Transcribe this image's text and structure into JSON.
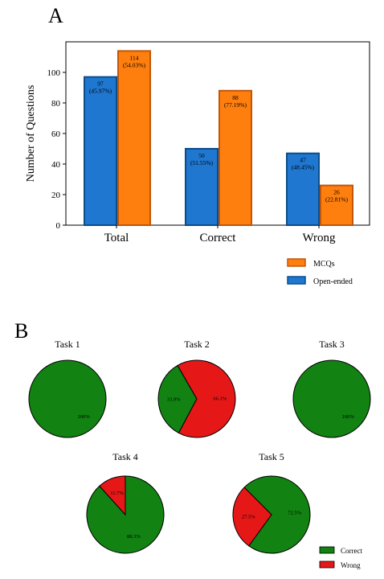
{
  "panel_a_label": "A",
  "panel_b_label": "B",
  "colors": {
    "mcq": "#FF7F0E",
    "mcq_edge": "#c0560a",
    "open": "#1F77D0",
    "open_edge": "#0b4d8c",
    "correct": "#128212",
    "wrong": "#E61717"
  },
  "chart_data": [
    {
      "type": "bar",
      "categories": [
        "Total",
        "Correct",
        "Wrong"
      ],
      "ylabel": "Number of Questions",
      "ylim": [
        0,
        120
      ],
      "yticks": [
        0,
        20,
        40,
        60,
        80,
        100
      ],
      "series": [
        {
          "name": "Open-ended",
          "values": [
            97,
            50,
            47
          ],
          "labels": [
            [
              "97",
              "(45.97%)"
            ],
            [
              "50",
              "(51.55%)"
            ],
            [
              "47",
              "(48.45%)"
            ]
          ]
        },
        {
          "name": "MCQs",
          "values": [
            114,
            88,
            26
          ],
          "labels": [
            [
              "114",
              "(54.03%)"
            ],
            [
              "88",
              "(77.19%)"
            ],
            [
              "26",
              "(22.81%)"
            ]
          ]
        }
      ],
      "legend_order": [
        "MCQs",
        "Open-ended"
      ],
      "legend": "bottom-right, outside plot"
    },
    {
      "type": "pie",
      "legend": [
        "Correct",
        "Wrong"
      ],
      "pies": [
        {
          "title": "Task 1",
          "slices": [
            {
              "label": "Correct",
              "value": 100,
              "text": "100%"
            }
          ]
        },
        {
          "title": "Task 2",
          "slices": [
            {
              "label": "Correct",
              "value": 33.9,
              "text": "33.9%"
            },
            {
              "label": "Wrong",
              "value": 66.1,
              "text": "66.1%"
            }
          ]
        },
        {
          "title": "Task 3",
          "slices": [
            {
              "label": "Correct",
              "value": 100,
              "text": "100%"
            }
          ]
        },
        {
          "title": "Task 4",
          "slices": [
            {
              "label": "Correct",
              "value": 88.3,
              "text": "88.3%"
            },
            {
              "label": "Wrong",
              "value": 11.7,
              "text": "11.7%"
            }
          ]
        },
        {
          "title": "Task 5",
          "slices": [
            {
              "label": "Correct",
              "value": 72.5,
              "text": "72.5%"
            },
            {
              "label": "Wrong",
              "value": 27.5,
              "text": "27.5%"
            }
          ]
        }
      ]
    }
  ]
}
